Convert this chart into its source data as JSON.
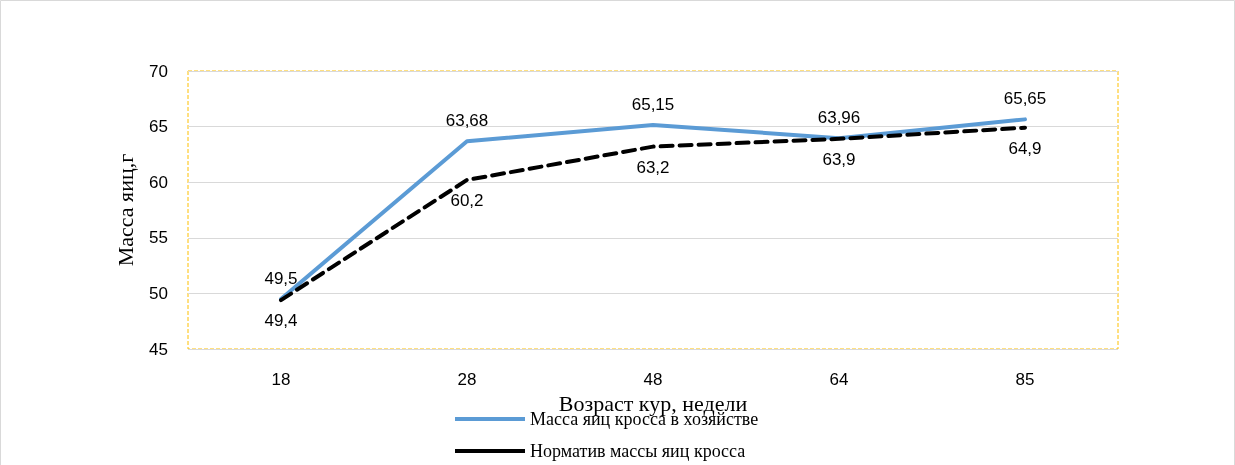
{
  "chart_data": {
    "type": "line",
    "xlabel": "Возраст кур, недели",
    "ylabel": "Масса яиц,г",
    "categories": [
      "18",
      "28",
      "48",
      "64",
      "85"
    ],
    "series": [
      {
        "name": "Масса яиц кросса в хозяйстве",
        "color": "#5b9bd5",
        "line_style": "solid",
        "values": [
          49.5,
          63.68,
          65.15,
          63.96,
          65.65
        ],
        "value_labels": [
          "49,5",
          "63,68",
          "65,15",
          "63,96",
          "65,65"
        ]
      },
      {
        "name": "Норматив массы яиц кросса",
        "color": "#000000",
        "line_style": "dashed",
        "values": [
          49.4,
          60.2,
          63.2,
          63.9,
          64.9
        ],
        "value_labels": [
          "49,4",
          "60,2",
          "63,2",
          "63,9",
          "64,9"
        ]
      }
    ],
    "ylim": [
      45,
      70
    ],
    "yticks": [
      45,
      50,
      55,
      60,
      65,
      70
    ],
    "grid": "y",
    "legend": "bottom",
    "marker": "none"
  }
}
